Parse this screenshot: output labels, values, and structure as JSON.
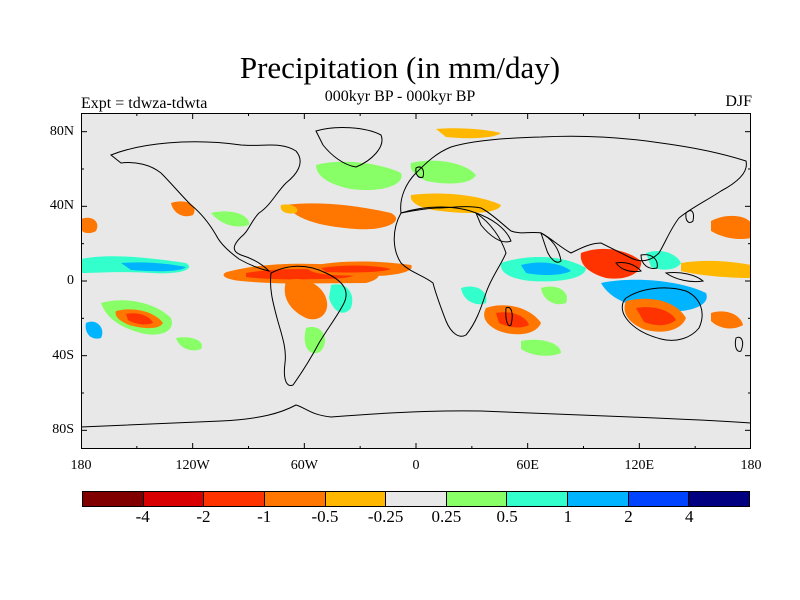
{
  "title": "Precipitation (in mm/day)",
  "subtitle": "000kyr BP - 000kyr BP",
  "experiment": "Expt = tdwza-tdwta",
  "season": "DJF",
  "lat_labels": [
    "80N",
    "40N",
    "0",
    "40S",
    "80S"
  ],
  "lat_values": [
    80,
    40,
    0,
    -40,
    -80
  ],
  "lon_labels": [
    "180",
    "120W",
    "60W",
    "0",
    "60E",
    "120E",
    "180"
  ],
  "lon_values": [
    -180,
    -120,
    -60,
    0,
    60,
    120,
    180
  ],
  "colorbar": {
    "colors": [
      "#800000",
      "#d80000",
      "#ff3300",
      "#ff7700",
      "#ffb700",
      "#e8e8e8",
      "#88ff66",
      "#33ffcc",
      "#00b4ff",
      "#0044ff",
      "#000080"
    ],
    "labels": [
      "-4",
      "-2",
      "-1",
      "-0.5",
      "-0.25",
      "0.25",
      "0.5",
      "1",
      "2",
      "4"
    ]
  },
  "colors": {
    "background": "#e8e8e8",
    "coast": "#000000"
  }
}
